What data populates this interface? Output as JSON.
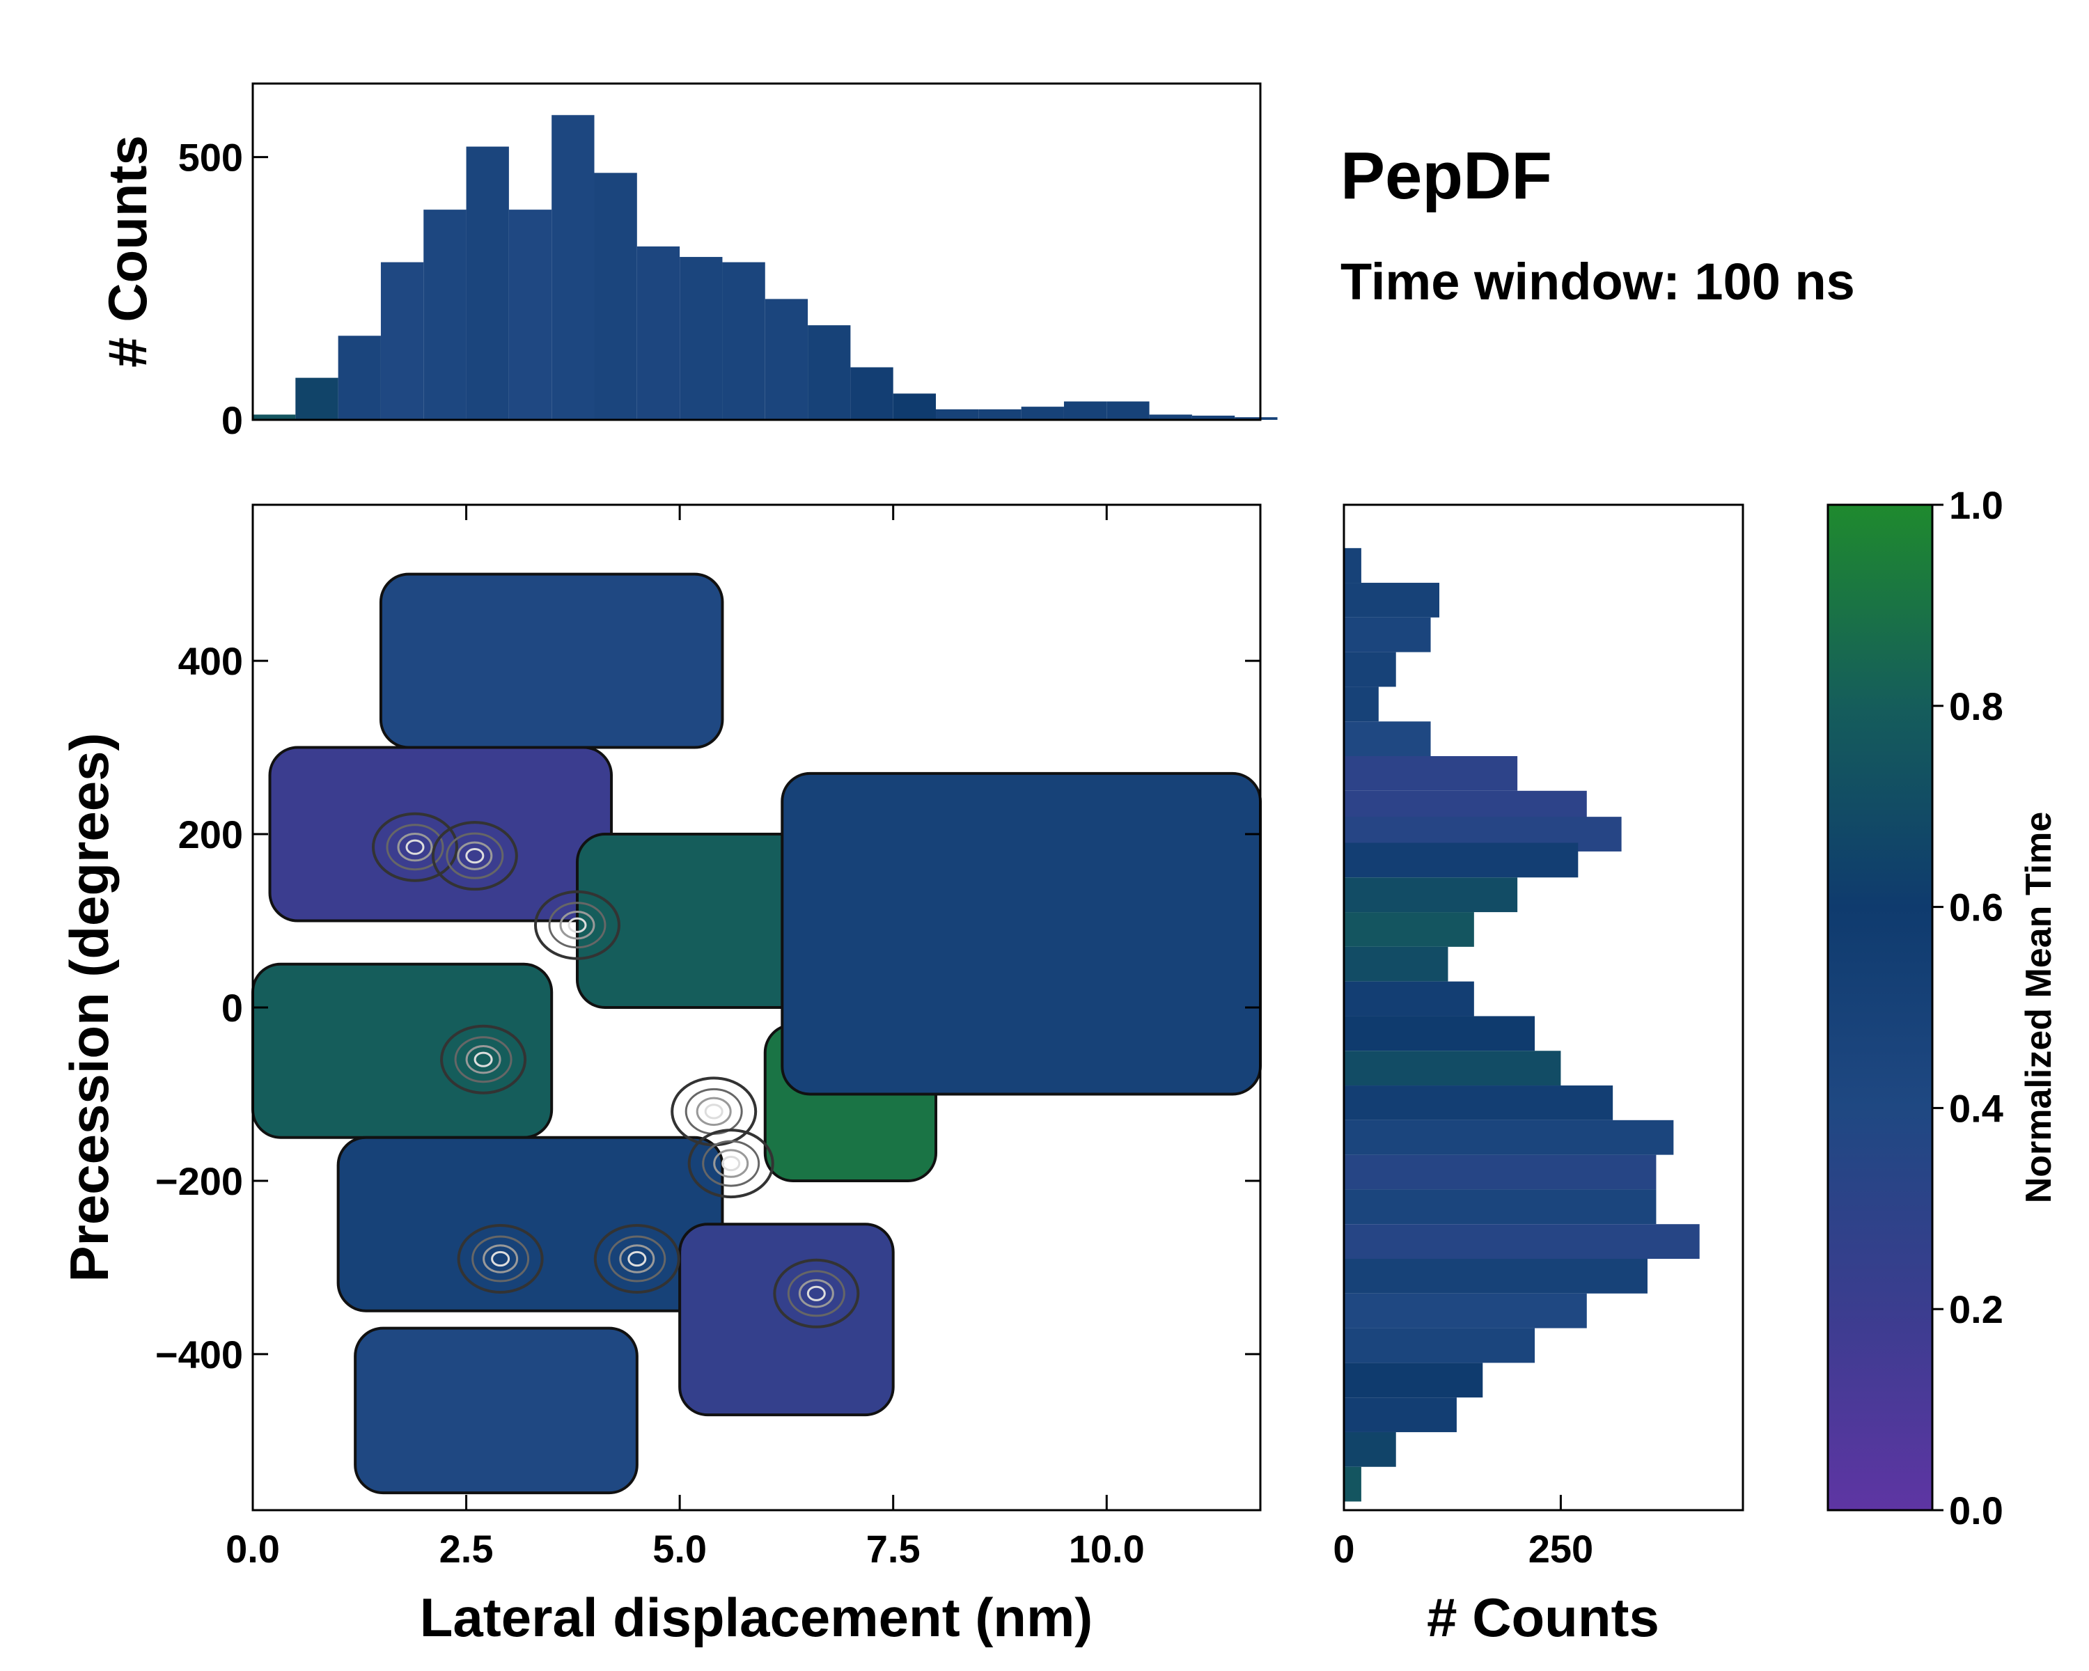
{
  "chart_data": [
    {
      "panel": "top-histogram",
      "type": "bar",
      "xlabel": "",
      "ylabel": "# Counts",
      "xlim": [
        0,
        11.8
      ],
      "ylim": [
        0,
        640
      ],
      "yticks": [
        0,
        500
      ],
      "ytick_labels": [
        "0",
        "500"
      ],
      "bins": [
        {
          "x": 0.25,
          "count": 10,
          "t": 0.75
        },
        {
          "x": 0.75,
          "count": 80,
          "t": 0.65
        },
        {
          "x": 1.25,
          "count": 160,
          "t": 0.45
        },
        {
          "x": 1.75,
          "count": 300,
          "t": 0.4
        },
        {
          "x": 2.25,
          "count": 400,
          "t": 0.42
        },
        {
          "x": 2.75,
          "count": 520,
          "t": 0.45
        },
        {
          "x": 3.25,
          "count": 400,
          "t": 0.4
        },
        {
          "x": 3.75,
          "count": 580,
          "t": 0.42
        },
        {
          "x": 4.25,
          "count": 470,
          "t": 0.45
        },
        {
          "x": 4.75,
          "count": 330,
          "t": 0.43
        },
        {
          "x": 5.25,
          "count": 310,
          "t": 0.45
        },
        {
          "x": 5.75,
          "count": 300,
          "t": 0.45
        },
        {
          "x": 6.25,
          "count": 230,
          "t": 0.45
        },
        {
          "x": 6.75,
          "count": 180,
          "t": 0.5
        },
        {
          "x": 7.25,
          "count": 100,
          "t": 0.55
        },
        {
          "x": 7.75,
          "count": 50,
          "t": 0.6
        },
        {
          "x": 8.25,
          "count": 20,
          "t": 0.5
        },
        {
          "x": 8.75,
          "count": 20,
          "t": 0.5
        },
        {
          "x": 9.25,
          "count": 25,
          "t": 0.5
        },
        {
          "x": 9.75,
          "count": 35,
          "t": 0.5
        },
        {
          "x": 10.25,
          "count": 35,
          "t": 0.5
        },
        {
          "x": 10.75,
          "count": 10,
          "t": 0.5
        },
        {
          "x": 11.25,
          "count": 8,
          "t": 0.5
        },
        {
          "x": 11.75,
          "count": 5,
          "t": 0.5
        }
      ]
    },
    {
      "panel": "main-heatmap",
      "type": "heatmap",
      "xlabel": "Lateral displacement (nm)",
      "ylabel": "Precession (degrees)",
      "xlim": [
        0,
        11.8
      ],
      "ylim": [
        -580,
        580
      ],
      "xticks": [
        0,
        2.5,
        5,
        7.5,
        10
      ],
      "xtick_labels": [
        "0.0",
        "2.5",
        "5.0",
        "7.5",
        "10.0"
      ],
      "yticks": [
        -400,
        -200,
        0,
        200,
        400
      ],
      "ytick_labels": [
        "−400",
        "−200",
        "0",
        "200",
        "400"
      ],
      "colorbar_quantity": "Normalized Mean Time",
      "regions": [
        {
          "x_range": [
            0.2,
            4.2
          ],
          "y_range": [
            100,
            300
          ],
          "mean_time": 0.2
        },
        {
          "x_range": [
            1.5,
            5.5
          ],
          "y_range": [
            300,
            500
          ],
          "mean_time": 0.4
        },
        {
          "x_range": [
            3.8,
            7.0
          ],
          "y_range": [
            0,
            200
          ],
          "mean_time": 0.8
        },
        {
          "x_range": [
            0.0,
            3.5
          ],
          "y_range": [
            -150,
            50
          ],
          "mean_time": 0.8
        },
        {
          "x_range": [
            6.0,
            8.0
          ],
          "y_range": [
            -200,
            -20
          ],
          "mean_time": 0.9
        },
        {
          "x_range": [
            1.0,
            5.5
          ],
          "y_range": [
            -350,
            -150
          ],
          "mean_time": 0.5
        },
        {
          "x_range": [
            5.0,
            7.5
          ],
          "y_range": [
            -470,
            -250
          ],
          "mean_time": 0.25
        },
        {
          "x_range": [
            1.2,
            4.5
          ],
          "y_range": [
            -560,
            -370
          ],
          "mean_time": 0.4
        },
        {
          "x_range": [
            6.2,
            11.8
          ],
          "y_range": [
            -100,
            270
          ],
          "mean_time": 0.5
        }
      ],
      "density_peaks": [
        {
          "x": 1.9,
          "y": 185
        },
        {
          "x": 2.6,
          "y": 175
        },
        {
          "x": 3.8,
          "y": 95
        },
        {
          "x": 2.7,
          "y": -60
        },
        {
          "x": 5.4,
          "y": -120
        },
        {
          "x": 5.6,
          "y": -180
        },
        {
          "x": 2.9,
          "y": -290
        },
        {
          "x": 4.5,
          "y": -290
        },
        {
          "x": 6.6,
          "y": -330
        }
      ]
    },
    {
      "panel": "right-histogram",
      "type": "bar",
      "orientation": "horizontal",
      "xlabel": "# Counts",
      "xlim": [
        0,
        460
      ],
      "xticks": [
        0,
        250
      ],
      "xtick_labels": [
        "0",
        "250"
      ],
      "bins": [
        {
          "y": 510,
          "count": 20,
          "t": 0.5
        },
        {
          "y": 470,
          "count": 110,
          "t": 0.5
        },
        {
          "y": 430,
          "count": 100,
          "t": 0.45
        },
        {
          "y": 390,
          "count": 60,
          "t": 0.5
        },
        {
          "y": 350,
          "count": 40,
          "t": 0.5
        },
        {
          "y": 310,
          "count": 100,
          "t": 0.4
        },
        {
          "y": 270,
          "count": 200,
          "t": 0.3
        },
        {
          "y": 230,
          "count": 280,
          "t": 0.3
        },
        {
          "y": 200,
          "count": 320,
          "t": 0.35
        },
        {
          "y": 170,
          "count": 270,
          "t": 0.55
        },
        {
          "y": 130,
          "count": 200,
          "t": 0.7
        },
        {
          "y": 90,
          "count": 150,
          "t": 0.75
        },
        {
          "y": 50,
          "count": 120,
          "t": 0.7
        },
        {
          "y": 10,
          "count": 150,
          "t": 0.55
        },
        {
          "y": -30,
          "count": 220,
          "t": 0.6
        },
        {
          "y": -70,
          "count": 250,
          "t": 0.7
        },
        {
          "y": -110,
          "count": 310,
          "t": 0.55
        },
        {
          "y": -150,
          "count": 380,
          "t": 0.45
        },
        {
          "y": -190,
          "count": 360,
          "t": 0.35
        },
        {
          "y": -230,
          "count": 360,
          "t": 0.45
        },
        {
          "y": -270,
          "count": 410,
          "t": 0.35
        },
        {
          "y": -310,
          "count": 350,
          "t": 0.5
        },
        {
          "y": -350,
          "count": 280,
          "t": 0.4
        },
        {
          "y": -390,
          "count": 220,
          "t": 0.45
        },
        {
          "y": -430,
          "count": 160,
          "t": 0.6
        },
        {
          "y": -470,
          "count": 130,
          "t": 0.55
        },
        {
          "y": -510,
          "count": 60,
          "t": 0.65
        },
        {
          "y": -550,
          "count": 20,
          "t": 0.75
        }
      ]
    }
  ],
  "title": "PepDF",
  "subtitle": "Time window: 100 ns",
  "colorbar": {
    "label": "Normalized Mean Time",
    "range": [
      0,
      1
    ],
    "ticks": [
      0.0,
      0.2,
      0.4,
      0.6,
      0.8,
      1.0
    ],
    "tick_labels": [
      "0.0",
      "0.2",
      "0.4",
      "0.6",
      "0.8",
      "1.0"
    ],
    "colors": [
      "#5e35a3",
      "#3b3d8f",
      "#1f4882",
      "#0f3b6e",
      "#155d5b",
      "#1f8a2e"
    ]
  }
}
